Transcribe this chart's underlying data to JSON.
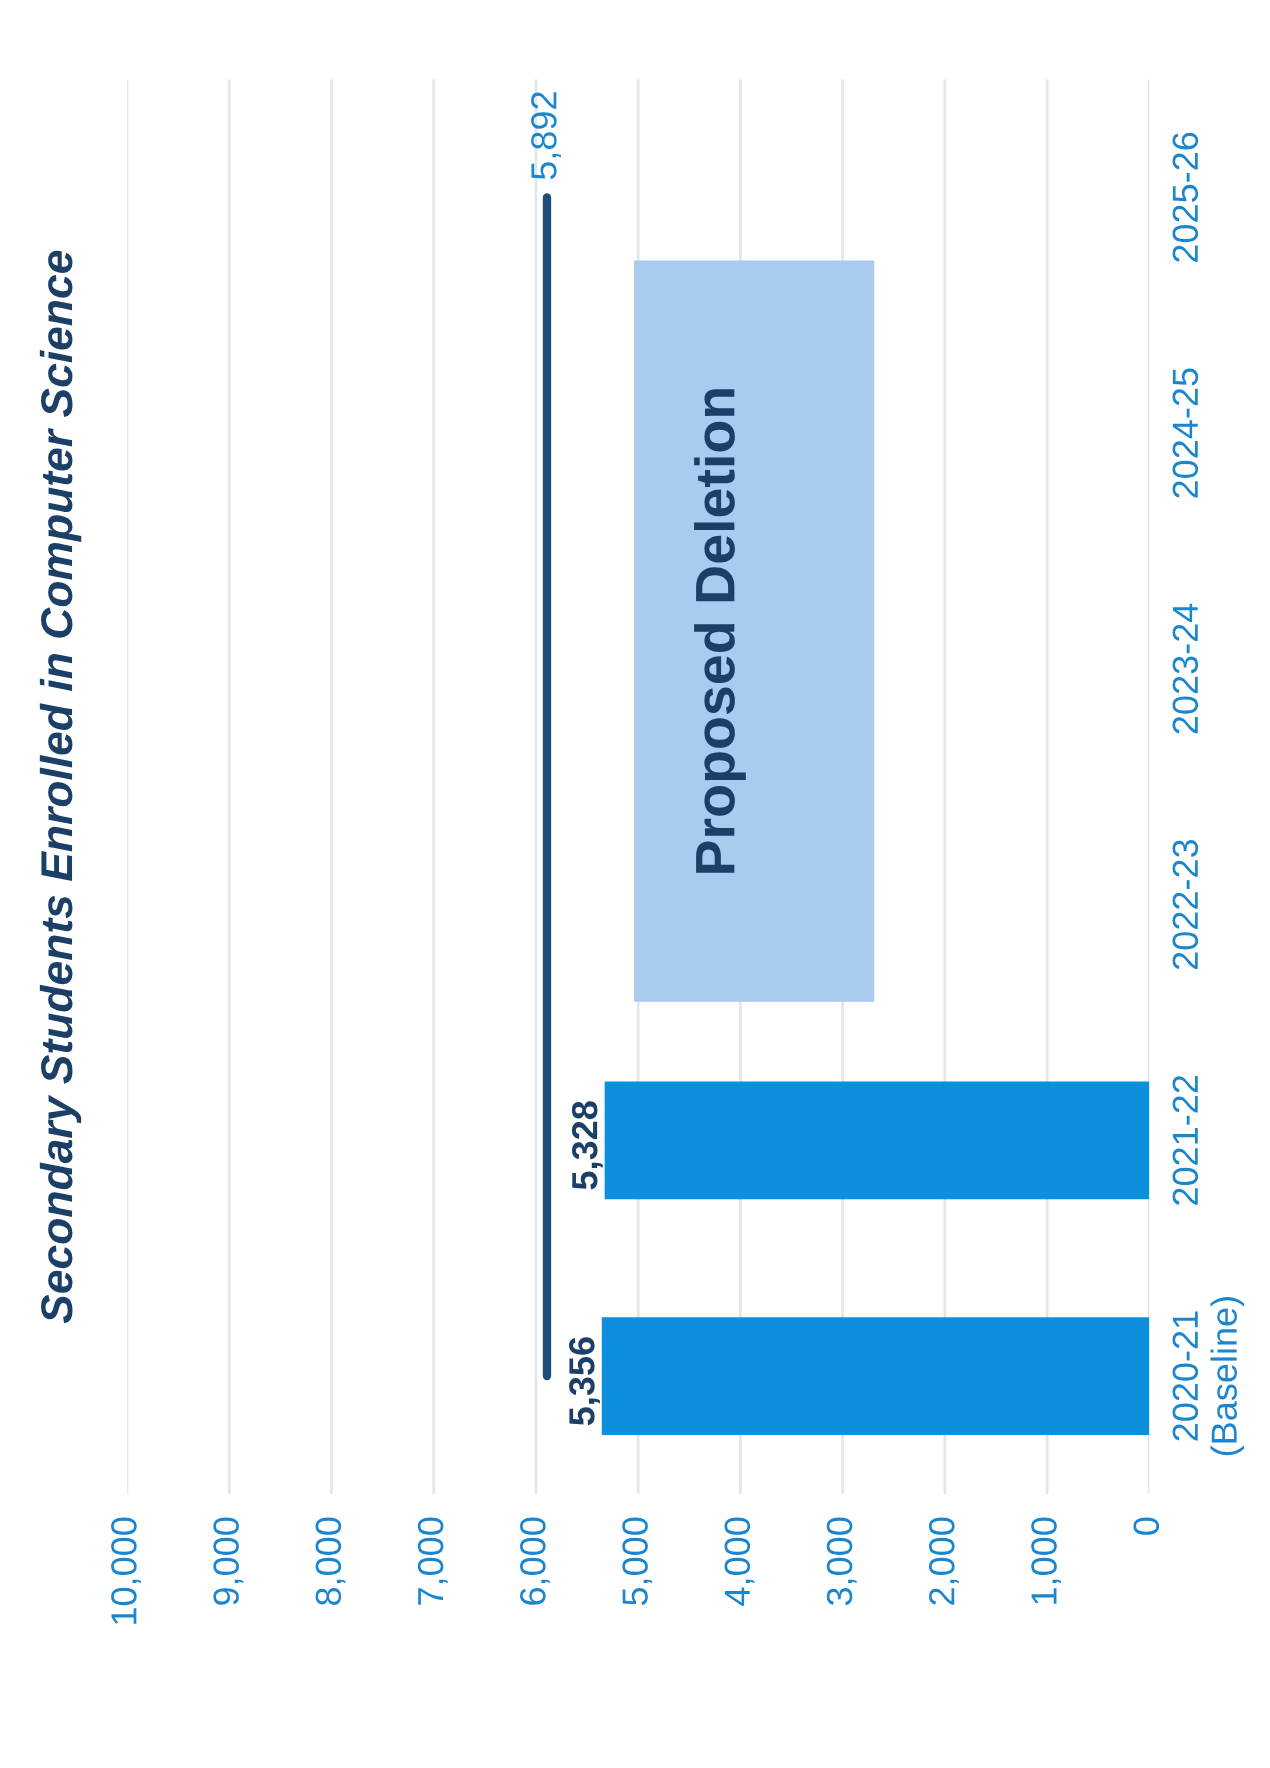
{
  "chart_data": {
    "type": "bar",
    "orientation": "horizontal",
    "title": "Secondary Students Enrolled in Computer Science",
    "categories": [
      "2025-26",
      "2024-25",
      "2023-24",
      "2022-23",
      "2021-22",
      "2020-21\n(Baseline)"
    ],
    "series": [
      {
        "color": "#0c90dc",
        "values": [
          null,
          null,
          null,
          null,
          5328,
          5356
        ],
        "value_labels": [
          null,
          null,
          null,
          null,
          "5,328",
          "5,356"
        ]
      },
      {
        "type": "line",
        "color": "#1b4f7a",
        "values": [
          5892,
          5892,
          5892,
          5892,
          5892,
          5892
        ],
        "value_labels": [
          "5,892",
          null,
          null,
          null,
          null,
          null
        ]
      }
    ],
    "xlim": [
      10000,
      0
    ],
    "xticks": [
      {
        "value": 10000,
        "label": "10,000"
      },
      {
        "value": 9000,
        "label": "9,000"
      },
      {
        "value": 8000,
        "label": "8,000"
      },
      {
        "value": 7000,
        "label": "7,000"
      },
      {
        "value": 6000,
        "label": "6,000"
      },
      {
        "value": 5000,
        "label": "5,000"
      },
      {
        "value": 4000,
        "label": "4,000"
      },
      {
        "value": 3000,
        "label": "3,000"
      },
      {
        "value": 2000,
        "label": "2,000"
      },
      {
        "value": 1000,
        "label": "1,000"
      },
      {
        "value": 0,
        "label": "0"
      }
    ],
    "grid": "x",
    "legend": false,
    "marker": "none",
    "annotations": [
      "Proposed Deletion"
    ]
  }
}
